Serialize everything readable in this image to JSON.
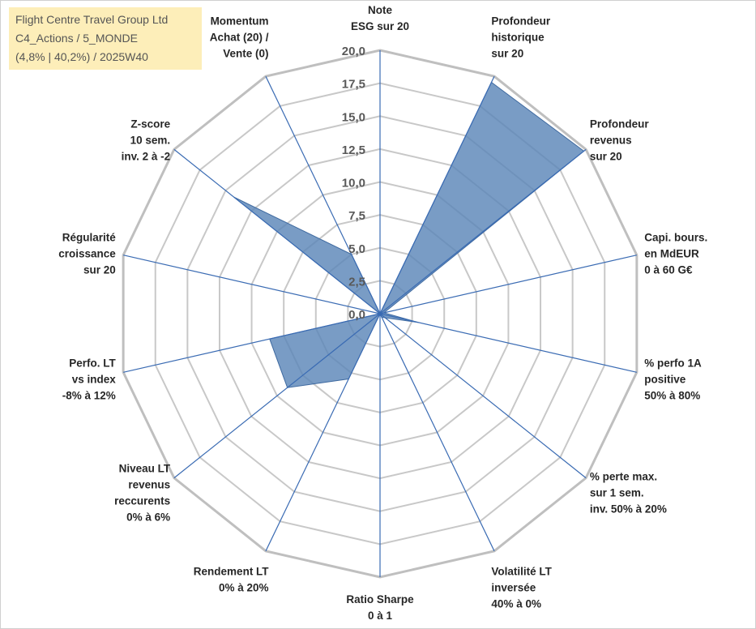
{
  "title_box": {
    "line1": "Flight Centre Travel Group Ltd",
    "line2": "C4_Actions / 5_MONDE",
    "line3": "(4,8% | 40,2%) / 2025W40"
  },
  "chart_data": {
    "type": "radar",
    "rmin": 0,
    "rmax": 20,
    "tick_values": [
      0,
      2.5,
      5,
      7.5,
      10,
      12.5,
      15,
      17.5,
      20
    ],
    "tick_labels": [
      "0,0",
      "2,5",
      "5,0",
      "7,5",
      "10,0",
      "12,5",
      "15,0",
      "17,5",
      "20,0"
    ],
    "grid": true,
    "axes": [
      {
        "lines": [
          "Note",
          "ESG sur 20"
        ],
        "value": 0
      },
      {
        "lines": [
          "Profondeur",
          "historique",
          "sur 20"
        ],
        "value": 19.5
      },
      {
        "lines": [
          "Profondeur",
          "revenus",
          "sur 20"
        ],
        "value": 19.8
      },
      {
        "lines": [
          "Capi. bours.",
          "en MdEUR",
          "0 à 60 G€"
        ],
        "value": 0.3
      },
      {
        "lines": [
          "% perfo 1A",
          "positive",
          "50% à 80%"
        ],
        "value": 3.0
      },
      {
        "lines": [
          "% perte max.",
          "sur 1 sem.",
          "inv. 50% à 20%"
        ],
        "value": 0.5
      },
      {
        "lines": [
          "Volatilité LT",
          "inversée",
          "40% à 0%"
        ],
        "value": 0.3
      },
      {
        "lines": [
          "Ratio Sharpe",
          "0 à 1"
        ],
        "value": 0
      },
      {
        "lines": [
          "Rendement LT",
          "0% à 20%"
        ],
        "value": 5.5
      },
      {
        "lines": [
          "Niveau LT",
          "revenus",
          "reccurents",
          "0% à 6%"
        ],
        "value": 9.0
      },
      {
        "lines": [
          "Perfo. LT",
          "vs index",
          "-8% à 12%"
        ],
        "value": 8.6
      },
      {
        "lines": [
          "Régularité",
          "croissance",
          "sur 20"
        ],
        "value": 0
      },
      {
        "lines": [
          "Z-score",
          "10 sem.",
          "inv. 2 à -2"
        ],
        "value": 14.2
      },
      {
        "lines": [
          "Momentum",
          "Achat (20) /",
          "Vente (0)"
        ],
        "value": 5.0
      }
    ],
    "series": [
      {
        "values": [
          0,
          19.5,
          19.8,
          0.3,
          3.0,
          0.5,
          0.3,
          0,
          5.5,
          9.0,
          8.6,
          0,
          14.2,
          5.0
        ]
      }
    ],
    "colors": {
      "fill": "#5b86b8",
      "stroke": "#3f6aa0",
      "spoke": "#3a6bb3",
      "grid": "#c8c8c8",
      "outer": "#bfbfbf"
    }
  }
}
